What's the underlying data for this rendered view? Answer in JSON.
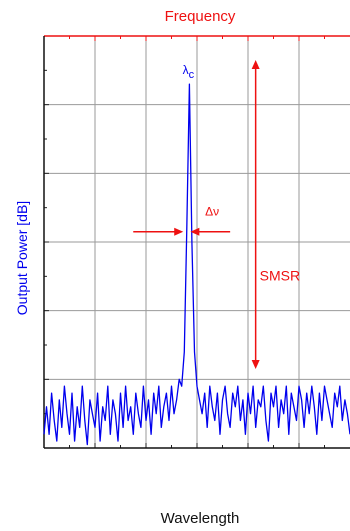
{
  "chart_data": {
    "type": "line",
    "top_axis_label": "Frequency",
    "xlabel": "Wavelength",
    "ylabel": "Output Power [dB]",
    "grid": true,
    "xlim": [
      0,
      6
    ],
    "ylim": [
      0,
      6
    ],
    "annotations": {
      "peak_label": {
        "text": "λ",
        "subscript": "c"
      },
      "linewidth_label": "Δν",
      "smsr_label": "SMSR"
    },
    "markers": {
      "smsr_x": 4.15,
      "smsr_top_y": 5.65,
      "smsr_bottom_y": 1.15,
      "linewidth_y": 3.15,
      "linewidth_left_start_x": 1.75,
      "linewidth_left_end_x": 2.73,
      "linewidth_right_start_x": 3.65,
      "linewidth_right_end_x": 2.87
    },
    "series": [
      {
        "color": "#0000ee",
        "x": [
          0.0,
          0.05,
          0.1,
          0.15,
          0.2,
          0.25,
          0.3,
          0.35,
          0.4,
          0.45,
          0.5,
          0.55,
          0.6,
          0.65,
          0.7,
          0.75,
          0.8,
          0.85,
          0.9,
          0.95,
          1.0,
          1.05,
          1.1,
          1.15,
          1.2,
          1.25,
          1.3,
          1.35,
          1.4,
          1.45,
          1.5,
          1.55,
          1.6,
          1.65,
          1.7,
          1.75,
          1.8,
          1.85,
          1.9,
          1.95,
          2.0,
          2.05,
          2.1,
          2.15,
          2.2,
          2.25,
          2.3,
          2.35,
          2.4,
          2.45,
          2.5,
          2.55,
          2.6,
          2.65,
          2.7,
          2.75,
          2.8,
          2.85,
          2.9,
          2.95,
          3.0,
          3.05,
          3.1,
          3.15,
          3.2,
          3.25,
          3.3,
          3.35,
          3.4,
          3.45,
          3.5,
          3.55,
          3.6,
          3.65,
          3.7,
          3.75,
          3.8,
          3.85,
          3.9,
          3.95,
          4.0,
          4.05,
          4.1,
          4.15,
          4.2,
          4.25,
          4.3,
          4.35,
          4.4,
          4.45,
          4.5,
          4.55,
          4.6,
          4.65,
          4.7,
          4.75,
          4.8,
          4.85,
          4.9,
          4.95,
          5.0,
          5.05,
          5.1,
          5.15,
          5.2,
          5.25,
          5.3,
          5.35,
          5.4,
          5.45,
          5.5,
          5.55,
          5.6,
          5.65,
          5.7,
          5.75,
          5.8,
          5.85,
          5.9,
          5.95,
          6.0
        ],
        "y": [
          0.2,
          0.6,
          0.2,
          0.8,
          0.4,
          0.1,
          0.7,
          0.3,
          0.9,
          0.5,
          0.2,
          0.8,
          0.1,
          0.6,
          0.3,
          0.9,
          0.4,
          0.05,
          0.7,
          0.5,
          0.3,
          0.8,
          0.1,
          0.6,
          0.4,
          0.9,
          0.2,
          0.7,
          0.5,
          0.1,
          0.8,
          0.3,
          0.9,
          0.4,
          0.6,
          0.2,
          0.8,
          0.5,
          0.3,
          0.9,
          0.4,
          0.7,
          0.2,
          0.8,
          0.5,
          0.9,
          0.3,
          0.6,
          0.8,
          0.4,
          0.9,
          0.5,
          0.7,
          1.0,
          0.9,
          1.4,
          3.2,
          5.3,
          3.0,
          1.4,
          0.9,
          0.7,
          0.5,
          0.8,
          0.3,
          0.9,
          0.6,
          0.4,
          0.8,
          0.2,
          0.7,
          0.9,
          0.5,
          0.3,
          0.8,
          0.6,
          0.9,
          0.4,
          0.7,
          0.2,
          0.8,
          0.5,
          0.9,
          0.3,
          0.7,
          0.6,
          0.9,
          0.4,
          0.1,
          0.8,
          0.6,
          0.9,
          0.3,
          0.7,
          0.5,
          0.9,
          0.2,
          0.8,
          0.6,
          0.4,
          0.9,
          0.7,
          0.3,
          0.8,
          0.5,
          0.9,
          0.6,
          0.2,
          0.8,
          0.4,
          0.9,
          0.7,
          0.5,
          0.3,
          0.8,
          0.6,
          0.9,
          0.4,
          0.7,
          0.5,
          0.2
        ]
      }
    ]
  }
}
